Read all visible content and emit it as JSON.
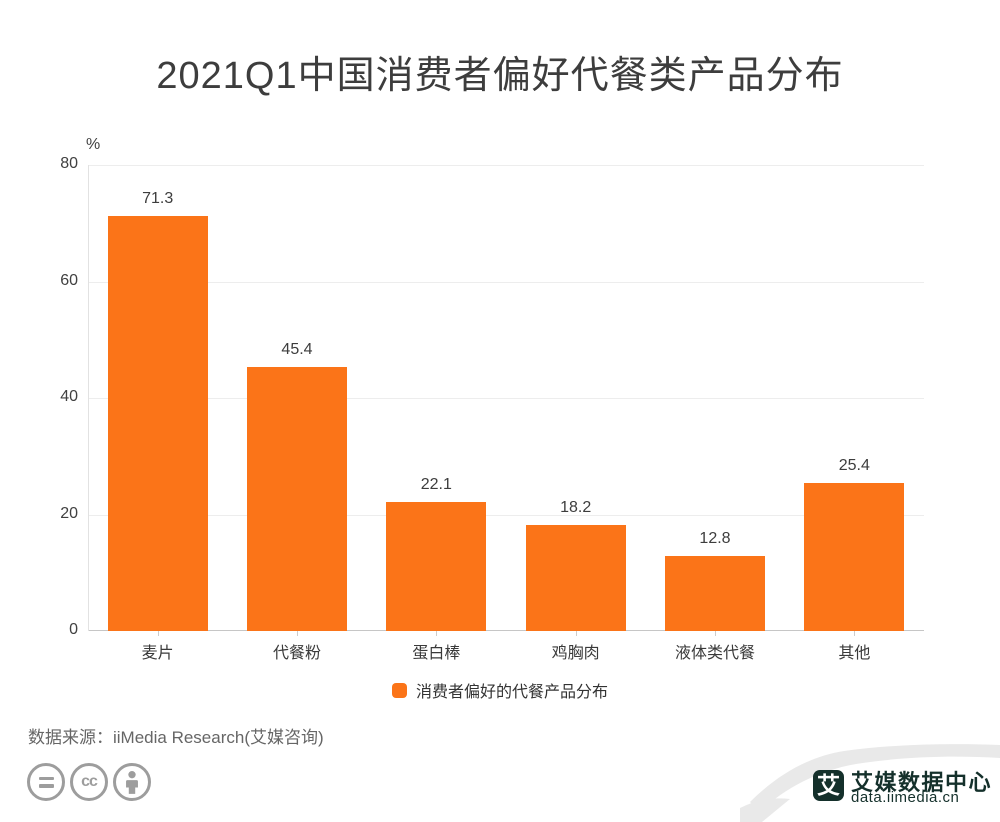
{
  "chart_data": {
    "type": "bar",
    "title": "2021Q1中国消费者偏好代餐类产品分布",
    "unit": "%",
    "categories": [
      "麦片",
      "代餐粉",
      "蛋白棒",
      "鸡胸肉",
      "液体类代餐",
      "其他"
    ],
    "values": [
      71.3,
      45.4,
      22.1,
      18.2,
      12.8,
      25.4
    ],
    "series_label": "消费者偏好的代餐产品分布",
    "ylim": [
      0,
      80
    ],
    "yticks": [
      0,
      20,
      40,
      60,
      80
    ],
    "bar_color": "#fb7418",
    "grid": true,
    "legend_position": "bottom"
  },
  "footer": {
    "source": "数据来源：iiMedia Research(艾媒咨询)",
    "license_cc_text": "cc",
    "brand": {
      "logo_char": "艾",
      "name": "艾媒数据中心",
      "url": "data.iimedia.cn"
    }
  },
  "colors": {
    "accent_orange": "#fb7418",
    "title_text": "#3d3d3d",
    "axis_text": "#404040",
    "source_text": "#666666",
    "icon_gray": "#9d9d9d",
    "wave_gray": "#e9e9e9",
    "brand_dark": "#14302b"
  }
}
